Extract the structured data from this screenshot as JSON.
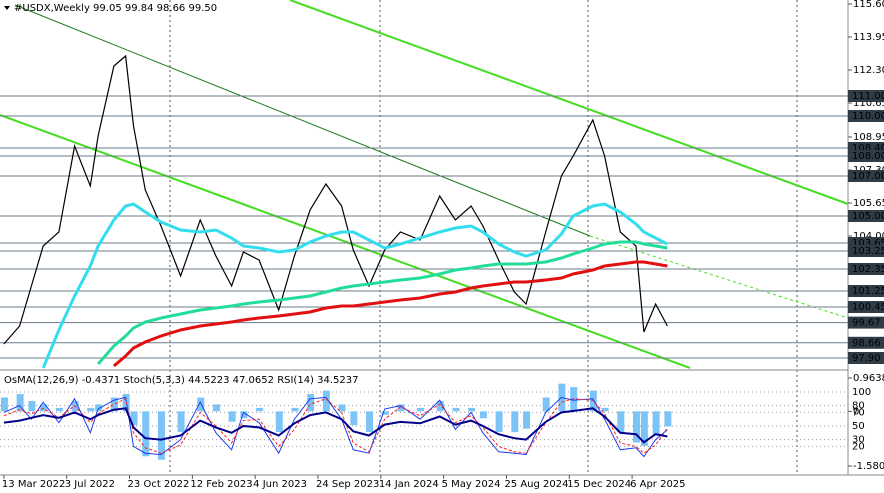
{
  "chart_data": [
    {
      "type": "line",
      "title": "#USDX,Weekly  99.05 99.84 98.66 99.50",
      "x": [
        "2022-03-13",
        "2022-04-10",
        "2022-05-01",
        "2022-05-22",
        "2022-06-19",
        "2022-07-17",
        "2022-08-14",
        "2022-08-28",
        "2022-09-25",
        "2022-10-16",
        "2022-10-30",
        "2022-11-20",
        "2022-12-18",
        "2023-01-22",
        "2023-02-26",
        "2023-03-26",
        "2023-04-23",
        "2023-05-14",
        "2023-06-11",
        "2023-07-16",
        "2023-08-13",
        "2023-09-10",
        "2023-10-08",
        "2023-11-05",
        "2023-11-26",
        "2023-12-24",
        "2024-01-21",
        "2024-02-18",
        "2024-03-24",
        "2024-04-28",
        "2024-05-26",
        "2024-06-23",
        "2024-07-14",
        "2024-08-11",
        "2024-09-08",
        "2024-09-29",
        "2024-11-03",
        "2024-12-01",
        "2024-12-22",
        "2025-01-26",
        "2025-02-16",
        "2025-03-16",
        "2025-04-13",
        "2025-04-27",
        "2025-05-18",
        "2025-06-08"
      ],
      "series": [
        {
          "color": "#000000",
          "values": [
            98.6,
            99.5,
            101.5,
            103.5,
            104.2,
            108.5,
            106.5,
            109.0,
            112.5,
            113.0,
            109.5,
            106.3,
            104.5,
            102.0,
            104.8,
            103.0,
            101.5,
            103.2,
            102.8,
            100.3,
            103.0,
            105.3,
            106.6,
            105.5,
            103.3,
            101.5,
            103.3,
            104.2,
            103.8,
            106.0,
            104.8,
            105.5,
            104.5,
            102.8,
            101.2,
            100.6,
            104.2,
            107.0,
            108.0,
            109.8,
            108.0,
            104.2,
            103.5,
            99.2,
            100.6,
            99.5
          ]
        },
        {
          "color": "#33ddee",
          "values": [
            null,
            null,
            null,
            97.4,
            99.3,
            101.0,
            102.5,
            103.5,
            104.8,
            105.5,
            105.6,
            105.2,
            104.7,
            104.3,
            104.2,
            104.3,
            103.9,
            103.5,
            103.4,
            103.2,
            103.3,
            103.7,
            104.0,
            104.2,
            104.2,
            103.8,
            103.4,
            103.6,
            103.9,
            104.2,
            104.4,
            104.5,
            104.2,
            103.6,
            103.2,
            103.0,
            103.3,
            104.1,
            105.0,
            105.5,
            105.6,
            105.2,
            104.6,
            104.2,
            103.9,
            103.6
          ]
        },
        {
          "color": "#22dd99",
          "values": [
            null,
            null,
            null,
            null,
            null,
            null,
            null,
            97.6,
            98.5,
            99.0,
            99.4,
            99.7,
            99.9,
            100.1,
            100.3,
            100.4,
            100.5,
            100.6,
            100.7,
            100.8,
            100.9,
            101.0,
            101.2,
            101.4,
            101.5,
            101.6,
            101.7,
            101.8,
            101.9,
            102.1,
            102.3,
            102.4,
            102.5,
            102.6,
            102.6,
            102.6,
            102.7,
            102.9,
            103.1,
            103.4,
            103.6,
            103.7,
            103.7,
            103.6,
            103.5,
            103.4
          ]
        },
        {
          "color": "#e01010",
          "values": [
            null,
            null,
            null,
            null,
            null,
            null,
            null,
            null,
            97.5,
            98.0,
            98.4,
            98.7,
            99.0,
            99.3,
            99.5,
            99.6,
            99.7,
            99.8,
            99.9,
            100.0,
            100.1,
            100.2,
            100.4,
            100.5,
            100.5,
            100.6,
            100.7,
            100.8,
            100.9,
            101.1,
            101.2,
            101.4,
            101.5,
            101.6,
            101.7,
            101.7,
            101.8,
            101.9,
            102.1,
            102.3,
            102.5,
            102.6,
            102.7,
            102.7,
            102.6,
            102.5
          ]
        }
      ],
      "xlim": [
        "2022-03-06",
        "2026-04-26"
      ],
      "xticks": [
        {
          "value": "2022-03-13",
          "label": "13 Mar 2022"
        },
        {
          "value": "2022-07-03",
          "label": "3 Jul 2022"
        },
        {
          "value": "2022-10-23",
          "label": "23 Oct 2022"
        },
        {
          "value": "2023-02-12",
          "label": "12 Feb 2023"
        },
        {
          "value": "2023-06-04",
          "label": "4 Jun 2023"
        },
        {
          "value": "2023-09-24",
          "label": "24 Sep 2023"
        },
        {
          "value": "2024-01-14",
          "label": "14 Jan 2024"
        },
        {
          "value": "2024-05-05",
          "label": "5 May 2024"
        },
        {
          "value": "2024-08-25",
          "label": "25 Aug 2024"
        },
        {
          "value": "2024-12-15",
          "label": "15 Dec 2024"
        },
        {
          "value": "2025-04-06",
          "label": "6 Apr 2025"
        }
      ],
      "ylim": [
        97.4,
        115.8
      ],
      "yticks": [
        {
          "value": 115.6,
          "label": "115.60"
        },
        113.95,
        {
          "value": 112.3,
          "label": "112.30"
        },
        110.65,
        108.95,
        {
          "value": 107.3,
          "label": "107.30"
        },
        105.65,
        {
          "value": 104,
          "label": "104.00"
        }
      ],
      "levels": [
        {
          "value": 111,
          "label": "111.00"
        },
        {
          "value": 110,
          "label": "110.00"
        },
        {
          "value": 108.4,
          "label": "108.40"
        },
        {
          "value": 108,
          "label": "108.00"
        },
        {
          "value": 107,
          "label": "107.00"
        },
        {
          "value": 105,
          "label": "105.00"
        },
        103.65,
        103.25,
        102.35,
        101.25,
        100.45,
        99.67,
        98.66,
        {
          "value": 97.9,
          "label": "97.90"
        }
      ]
    },
    {
      "type": "oscillator",
      "title": "OsMA(12,26,9) -0.4371  Stoch(5,3,3) 44.5223 47.0652  RSI(14) 34.5237",
      "x": [
        "2022-03-13",
        "2022-04-10",
        "2022-05-01",
        "2022-05-22",
        "2022-06-19",
        "2022-07-17",
        "2022-08-14",
        "2022-08-28",
        "2022-09-25",
        "2022-10-16",
        "2022-10-30",
        "2022-11-20",
        "2022-12-18",
        "2023-01-22",
        "2023-02-26",
        "2023-03-26",
        "2023-04-23",
        "2023-05-14",
        "2023-06-11",
        "2023-07-16",
        "2023-08-13",
        "2023-09-10",
        "2023-10-08",
        "2023-11-05",
        "2023-11-26",
        "2023-12-24",
        "2024-01-21",
        "2024-02-18",
        "2024-03-24",
        "2024-04-28",
        "2024-05-26",
        "2024-06-23",
        "2024-07-14",
        "2024-08-11",
        "2024-09-08",
        "2024-09-29",
        "2024-11-03",
        "2024-12-01",
        "2024-12-22",
        "2025-01-26",
        "2025-02-16",
        "2025-03-16",
        "2025-04-13",
        "2025-04-27",
        "2025-05-18",
        "2025-06-08"
      ],
      "series": [
        {
          "type": "bar",
          "color": "#7cc4f8",
          "values": [
            0.4,
            0.5,
            0.3,
            0.2,
            0.1,
            0.3,
            0.1,
            0.2,
            0.4,
            0.5,
            -0.4,
            -1.3,
            -1.4,
            -0.6,
            0.4,
            0.2,
            -0.3,
            -0.2,
            0.1,
            -0.6,
            0.1,
            0.5,
            0.6,
            0.2,
            -0.4,
            -0.6,
            -0.1,
            0.2,
            0.1,
            0.3,
            0.1,
            0.1,
            -0.2,
            -0.6,
            -0.6,
            -0.5,
            0.4,
            0.8,
            0.7,
            0.6,
            0.1,
            -0.6,
            -0.9,
            -1.0,
            -0.7,
            -0.4371
          ]
        },
        {
          "type": "line",
          "axis": "y2",
          "color": "#1a3cf0",
          "values": [
            70,
            80,
            60,
            85,
            55,
            90,
            40,
            75,
            88,
            92,
            20,
            10,
            8,
            30,
            85,
            40,
            15,
            70,
            55,
            10,
            60,
            90,
            92,
            60,
            15,
            10,
            75,
            80,
            60,
            88,
            45,
            70,
            40,
            12,
            10,
            8,
            70,
            92,
            88,
            90,
            60,
            15,
            18,
            5,
            30,
            44.5223
          ]
        },
        {
          "type": "line",
          "axis": "y2",
          "color": "#ff2020",
          "dashed": true,
          "values": [
            65,
            74,
            68,
            76,
            62,
            80,
            55,
            68,
            82,
            90,
            40,
            18,
            10,
            22,
            70,
            50,
            25,
            58,
            60,
            20,
            45,
            82,
            90,
            70,
            25,
            12,
            60,
            78,
            65,
            82,
            55,
            65,
            48,
            20,
            12,
            10,
            55,
            85,
            90,
            88,
            68,
            25,
            20,
            10,
            22,
            47.0652
          ]
        },
        {
          "type": "line",
          "axis": "y2",
          "color": "#00008b",
          "width": 2,
          "values": [
            55,
            58,
            62,
            66,
            62,
            70,
            60,
            66,
            74,
            76,
            48,
            32,
            30,
            36,
            58,
            48,
            40,
            50,
            48,
            36,
            54,
            66,
            70,
            60,
            42,
            36,
            52,
            56,
            54,
            64,
            52,
            58,
            50,
            38,
            32,
            30,
            56,
            70,
            72,
            76,
            64,
            40,
            38,
            26,
            38,
            34.5237
          ]
        }
      ],
      "xlim": [
        "2022-03-06",
        "2026-04-26"
      ],
      "ylim": [
        -1.5803,
        0.9638
      ],
      "yticks": [
        0.9638,
        0,
        -1.5803
      ],
      "y2lim": [
        0,
        100
      ],
      "y2ticks": [
        100,
        80,
        70,
        50,
        30,
        20
      ]
    }
  ]
}
